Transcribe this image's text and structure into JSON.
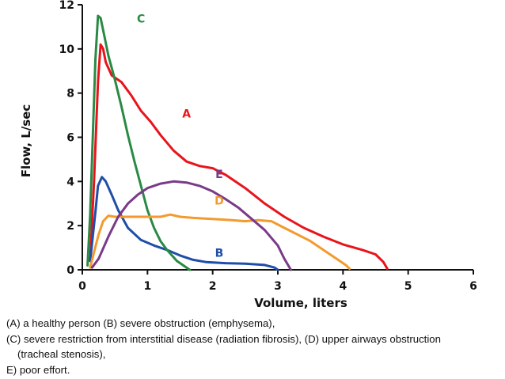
{
  "chart_data": {
    "type": "line",
    "title": "",
    "xlabel": "Volume, liters",
    "ylabel": "Flow, L/sec",
    "xlim": [
      0,
      6
    ],
    "ylim": [
      0,
      12
    ],
    "xticks": [
      0,
      1,
      2,
      3,
      4,
      5,
      6
    ],
    "yticks": [
      0,
      2,
      4,
      6,
      8,
      10,
      12
    ],
    "grid": false,
    "series": [
      {
        "name": "A",
        "color": "#e8141b",
        "x": [
          0.12,
          0.18,
          0.24,
          0.28,
          0.32,
          0.36,
          0.45,
          0.6,
          0.75,
          0.9,
          1.05,
          1.2,
          1.4,
          1.6,
          1.8,
          2.0,
          2.2,
          2.5,
          2.8,
          3.1,
          3.4,
          3.7,
          4.0,
          4.3,
          4.5,
          4.62,
          4.68
        ],
        "y": [
          0.4,
          4.0,
          8.5,
          10.2,
          10.0,
          9.4,
          8.8,
          8.5,
          7.9,
          7.2,
          6.7,
          6.1,
          5.4,
          4.9,
          4.7,
          4.6,
          4.3,
          3.7,
          3.0,
          2.4,
          1.9,
          1.5,
          1.15,
          0.9,
          0.7,
          0.35,
          0.05
        ]
      },
      {
        "name": "B",
        "color": "#1f4ea8",
        "x": [
          0.12,
          0.16,
          0.2,
          0.24,
          0.3,
          0.36,
          0.45,
          0.55,
          0.7,
          0.9,
          1.1,
          1.3,
          1.5,
          1.7,
          1.9,
          2.2,
          2.5,
          2.8,
          2.95,
          3.0
        ],
        "y": [
          0.4,
          1.5,
          2.6,
          3.8,
          4.2,
          4.0,
          3.4,
          2.7,
          1.9,
          1.35,
          1.1,
          0.9,
          0.65,
          0.45,
          0.35,
          0.3,
          0.28,
          0.22,
          0.1,
          0.0
        ]
      },
      {
        "name": "C",
        "color": "#2a8a45",
        "x": [
          0.08,
          0.12,
          0.16,
          0.2,
          0.24,
          0.28,
          0.33,
          0.4,
          0.5,
          0.6,
          0.7,
          0.8,
          0.9,
          1.0,
          1.1,
          1.2,
          1.3,
          1.45,
          1.6,
          1.65
        ],
        "y": [
          0.2,
          2.5,
          6.0,
          9.5,
          11.5,
          11.4,
          10.7,
          9.7,
          8.6,
          7.4,
          6.1,
          4.9,
          3.8,
          2.7,
          1.9,
          1.3,
          0.9,
          0.4,
          0.1,
          0.0
        ]
      },
      {
        "name": "D",
        "color": "#f39a2e",
        "x": [
          0.12,
          0.18,
          0.25,
          0.32,
          0.4,
          0.5,
          0.7,
          1.0,
          1.2,
          1.35,
          1.5,
          1.7,
          2.0,
          2.3,
          2.5,
          2.7,
          2.9,
          3.1,
          3.3,
          3.5,
          3.7,
          3.9,
          4.05,
          4.1
        ],
        "y": [
          0.1,
          0.8,
          1.6,
          2.2,
          2.45,
          2.4,
          2.4,
          2.4,
          2.4,
          2.5,
          2.4,
          2.35,
          2.3,
          2.25,
          2.2,
          2.25,
          2.2,
          1.9,
          1.6,
          1.3,
          0.9,
          0.5,
          0.2,
          0.05
        ]
      },
      {
        "name": "E",
        "color": "#7a3a88",
        "x": [
          0.15,
          0.25,
          0.4,
          0.55,
          0.7,
          0.85,
          1.0,
          1.2,
          1.4,
          1.6,
          1.8,
          2.0,
          2.2,
          2.4,
          2.6,
          2.8,
          3.0,
          3.1,
          3.2
        ],
        "y": [
          0.1,
          0.5,
          1.5,
          2.4,
          3.0,
          3.4,
          3.7,
          3.9,
          4.0,
          3.95,
          3.8,
          3.55,
          3.2,
          2.8,
          2.3,
          1.8,
          1.1,
          0.5,
          0.0
        ]
      }
    ],
    "annotations": [
      {
        "text": "A",
        "x": 1.6,
        "y": 6.9,
        "color": "#e8141b"
      },
      {
        "text": "B",
        "x": 2.1,
        "y": 0.6,
        "color": "#1f4ea8"
      },
      {
        "text": "C",
        "x": 0.9,
        "y": 11.2,
        "color": "#2a8a45"
      },
      {
        "text": "D",
        "x": 2.1,
        "y": 2.95,
        "color": "#f39a2e"
      },
      {
        "text": "E",
        "x": 2.1,
        "y": 4.15,
        "color": "#7a3a88"
      }
    ]
  },
  "caption": {
    "line1": "(A) a healthy person  (B) severe obstruction (emphysema),",
    "line2": "(C) severe restriction from interstitial disease (radiation fibrosis), (D) upper airways obstruction",
    "line3": "(tracheal stenosis),",
    "line4": "E) poor effort."
  }
}
